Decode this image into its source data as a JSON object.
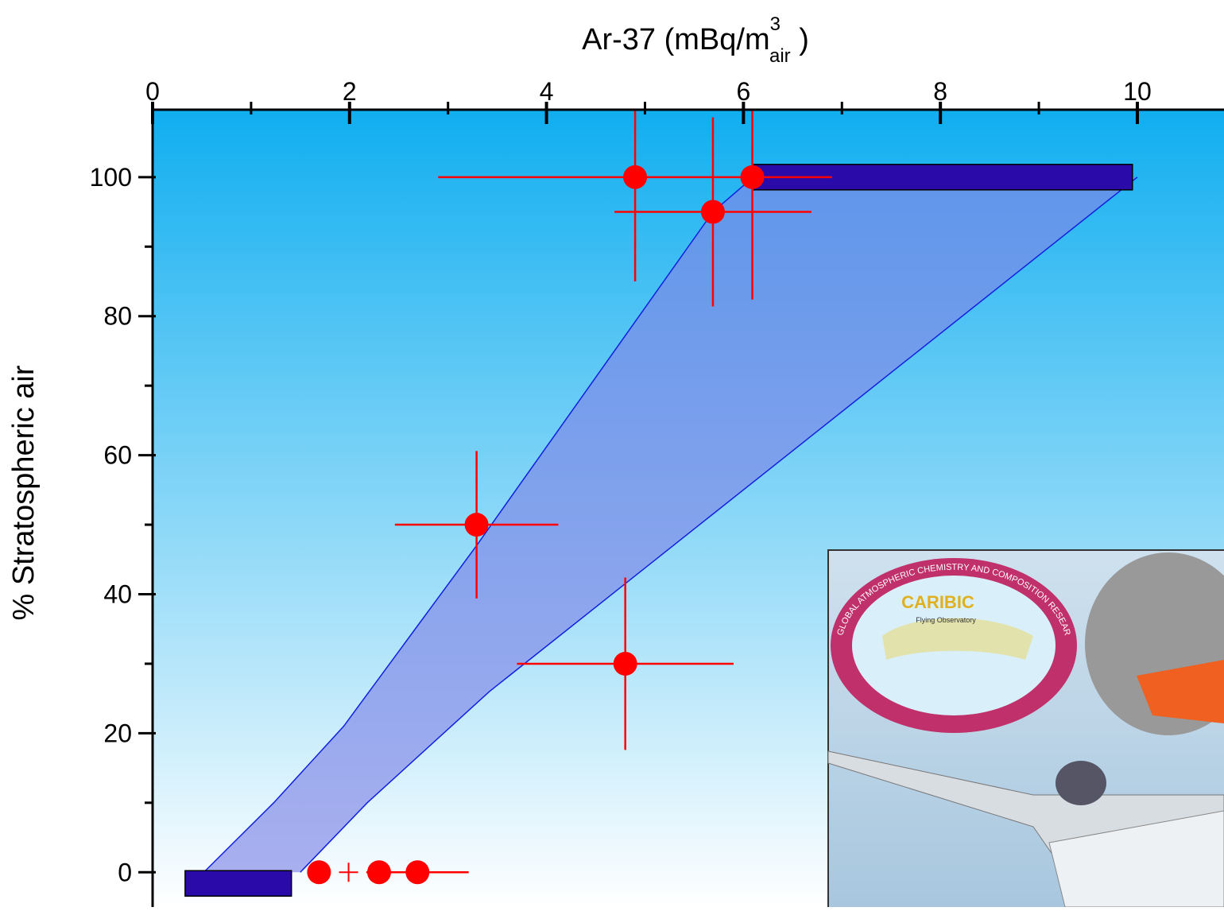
{
  "chart_data": {
    "type": "scatter",
    "xlabel": {
      "text": "Ar-37 (mBq/m",
      "sup": "3",
      "sub": "air",
      "close": " )"
    },
    "ylabel": "% Stratospheric air",
    "xlim": [
      0,
      10.88
    ],
    "ylim": [
      -5,
      109.7
    ],
    "xticks": [
      0,
      2,
      4,
      6,
      8,
      10
    ],
    "xminor": [
      1,
      3,
      5,
      7,
      9
    ],
    "yticks": [
      0,
      20,
      40,
      60,
      80,
      100
    ],
    "yminor": [
      10,
      30,
      50,
      70,
      90
    ],
    "series": [
      {
        "color": "#ff0000",
        "marker": "circle",
        "x": [
          4.9,
          5.69,
          6.09,
          3.29,
          4.8
        ],
        "values": [
          100,
          95,
          100,
          50,
          30
        ],
        "xerr": [
          2.0,
          1.0,
          null,
          0.83,
          1.1
        ],
        "yerr": [
          15,
          13.6,
          17.6,
          10.6,
          12.4
        ]
      },
      {
        "color": "#ff0000",
        "marker": "circle",
        "x": [
          1.69,
          2.3,
          2.69
        ],
        "values": [
          0,
          0,
          0
        ],
        "xerr": [
          null,
          null,
          0.52
        ],
        "yerr": [
          null,
          null,
          null
        ]
      },
      {
        "color": "#ff0000",
        "marker": "plus",
        "x": [
          1.99
        ],
        "values": [
          0
        ],
        "xerr": [
          null
        ],
        "yerr": [
          null
        ]
      }
    ],
    "band": {
      "color": "#7f86e6",
      "line_color": "#1020e0",
      "x_left": [
        0.52,
        1.23,
        1.94,
        3.29,
        5.69,
        6.1
      ],
      "y_left": [
        0,
        10,
        21,
        47,
        95,
        100
      ],
      "x_right": [
        1.5,
        2.18,
        3.42,
        10
      ],
      "y_right": [
        0,
        10,
        26,
        100
      ]
    },
    "ranges": [
      {
        "y": 100,
        "x0": 6.1,
        "x1": 9.95,
        "color": "#2a0aa8"
      },
      {
        "y": -1.6,
        "x0": 0.33,
        "x1": 1.41,
        "color": "#2a0aa8"
      }
    ]
  },
  "inset": {
    "logo_title": "CARIBIC",
    "logo_subtitle": "Flying Observatory",
    "ring_text": "GLOBAL ATMOSPHERIC CHEMISTRY AND COMPOSITION RESEARCH"
  }
}
